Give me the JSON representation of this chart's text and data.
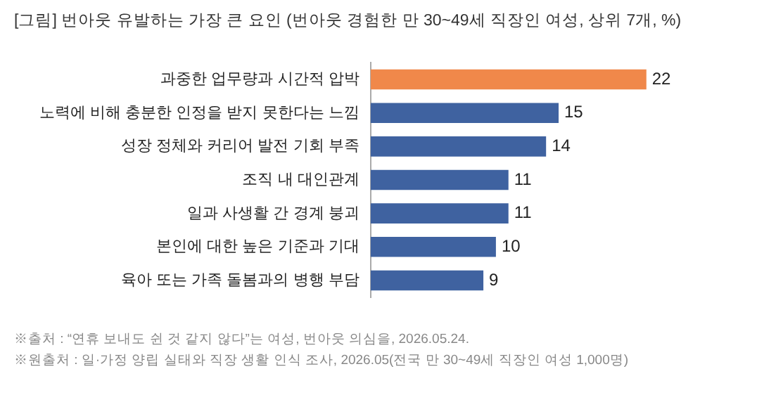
{
  "chart_data": {
    "type": "bar",
    "orientation": "horizontal",
    "title": "[그림] 번아웃 유발하는 가장 큰 요인 (번아웃 경험한 만 30~49세 직장인 여성, 상위 7개, %)",
    "categories": [
      "과중한 업무량과 시간적 압박",
      "노력에 비해 충분한 인정을 받지 못한다는 느낌",
      "성장 정체와 커리어 발전 기회 부족",
      "조직 내 대인관계",
      "일과 사생활 간 경계 붕괴",
      "본인에 대한 높은 기준과 기대",
      "육아 또는 가족 돌봄과의 병행 부담"
    ],
    "values": [
      22,
      15,
      14,
      11,
      11,
      10,
      9
    ],
    "colors": [
      "#f0884a",
      "#3f62a0",
      "#3f62a0",
      "#3f62a0",
      "#3f62a0",
      "#3f62a0",
      "#3f62a0"
    ],
    "data_labels": true,
    "tick_labels": "y",
    "legend": false,
    "annotations": [
      "※출처 : “연휴 보내도 쉰 것 같지 않다”는 여성, 번아웃 의심을, 2026.05.24.",
      "※원출처 : 일·가정 양립 실태와 직장 생활 인식 조사, 2026.05(전국 만 30~49세 직장인 여성 1,000명)"
    ]
  }
}
